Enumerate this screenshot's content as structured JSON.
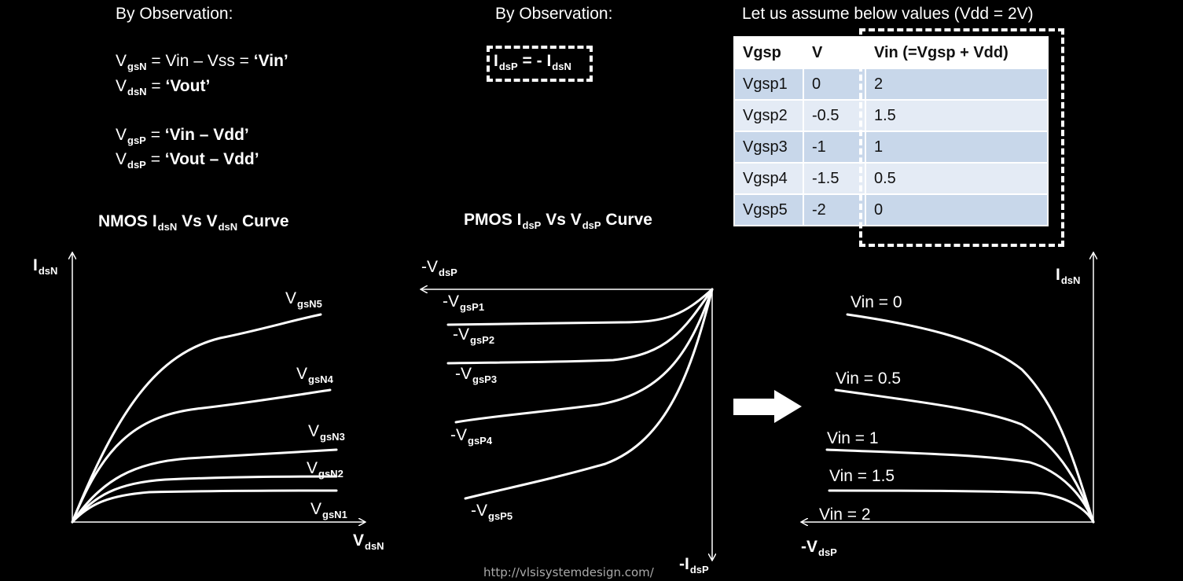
{
  "left_obs": {
    "heading": "By Observation:",
    "eq1": {
      "v": "V",
      "sub": "gsN",
      "rest": " = Vin – Vss = ",
      "bold": "‘Vin’"
    },
    "eq2": {
      "v": "V",
      "sub": "dsN",
      "rest": " = ",
      "bold": "‘Vout’"
    },
    "eq3": {
      "v": "V",
      "sub": "gsP",
      "rest": " = ",
      "bold": "‘Vin – Vdd’"
    },
    "eq4": {
      "v": "V",
      "sub": "dsP",
      "rest": " = ",
      "bold": "‘Vout – Vdd’"
    }
  },
  "mid_obs": {
    "heading": "By Observation:",
    "box": {
      "i1": "I",
      "s1": "dsP",
      "mid": " = - I",
      "s2": "dsN"
    }
  },
  "table": {
    "title": "Let us assume below values (Vdd = 2V)",
    "headers": [
      "Vgsp",
      "V",
      "Vin (=Vgsp + Vdd)"
    ],
    "rows": [
      [
        "Vgsp1",
        "0",
        "2"
      ],
      [
        "Vgsp2",
        "-0.5",
        "1.5"
      ],
      [
        "Vgsp3",
        "-1",
        "1"
      ],
      [
        "Vgsp4",
        "-1.5",
        "0.5"
      ],
      [
        "Vgsp5",
        "-2",
        "0"
      ]
    ]
  },
  "nmos": {
    "title": {
      "a": "NMOS I",
      "s1": "dsN",
      "b": " Vs V",
      "s2": "dsN",
      "c": " Curve"
    },
    "y_axis": {
      "v": "I",
      "sub": "dsN"
    },
    "x_axis": {
      "v": "V",
      "sub": "dsN"
    },
    "curves": [
      {
        "v": "V",
        "sub": "gsN5"
      },
      {
        "v": "V",
        "sub": "gsN4"
      },
      {
        "v": "V",
        "sub": "gsN3"
      },
      {
        "v": "V",
        "sub": "gsN2"
      },
      {
        "v": "V",
        "sub": "gsN1"
      }
    ]
  },
  "pmos": {
    "title": {
      "a": "PMOS I",
      "s1": "dsP",
      "b": " Vs V",
      "s2": "dsP",
      "c": " Curve"
    },
    "x_axis": {
      "v": "-V",
      "sub": "dsP"
    },
    "y_axis": {
      "v": "-I",
      "sub": "dsP"
    },
    "curves": [
      {
        "v": "-V",
        "sub": "gsP1"
      },
      {
        "v": "-V",
        "sub": "gsP2"
      },
      {
        "v": "-V",
        "sub": "gsP3"
      },
      {
        "v": "-V",
        "sub": "gsP4"
      },
      {
        "v": "-V",
        "sub": "gsP5"
      }
    ]
  },
  "combined": {
    "y_axis": {
      "v": "I",
      "sub": "dsN"
    },
    "x_axis": {
      "v": "-V",
      "sub": "dsP"
    },
    "curves": [
      "Vin = 0",
      "Vin = 0.5",
      "Vin = 1",
      "Vin = 1.5",
      "Vin = 2"
    ]
  },
  "footer": "http://vlsisystemdesign.com/",
  "colors": {
    "background": "#000000",
    "stroke": "#ffffff",
    "table_dark": "#c8d7ea",
    "table_light": "#e4ebf5"
  }
}
